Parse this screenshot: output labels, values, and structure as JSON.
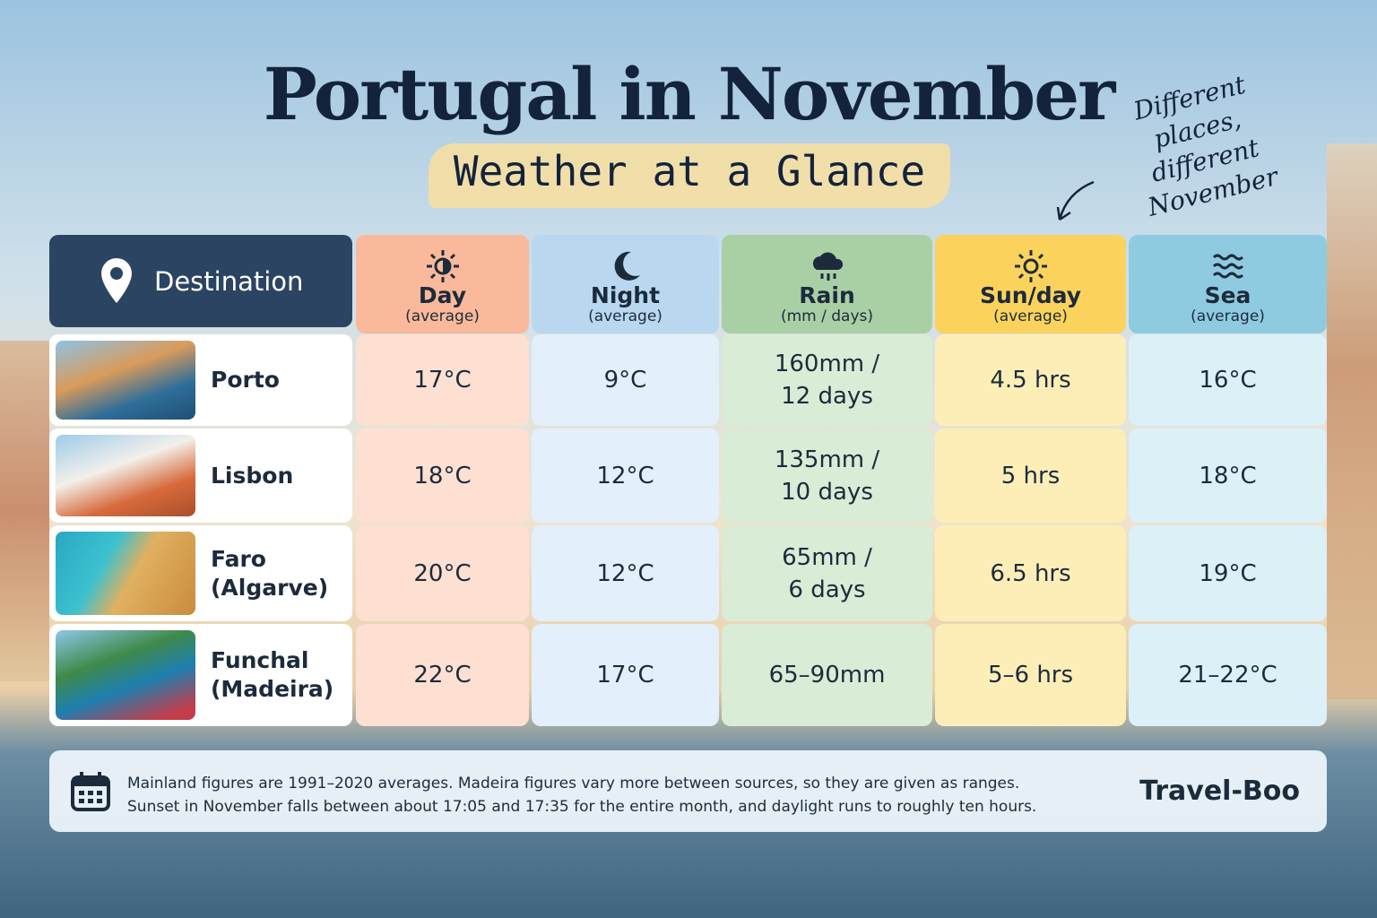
{
  "header": {
    "title": "Portugal in November",
    "subtitle": "Weather at a Glance",
    "annotation": [
      "Different",
      "places, different",
      "November"
    ]
  },
  "table": {
    "destination_header": "Destination",
    "columns": [
      {
        "title": "Day",
        "subtitle": "(average)"
      },
      {
        "title": "Night",
        "subtitle": "(average)"
      },
      {
        "title": "Rain",
        "subtitle": "(mm / days)"
      },
      {
        "title": "Sun/day",
        "subtitle": "(average)"
      },
      {
        "title": "Sea",
        "subtitle": "(average)"
      }
    ],
    "rows": [
      {
        "destination": [
          "Porto"
        ],
        "cells": [
          [
            "17°C"
          ],
          [
            "9°C"
          ],
          [
            "160mm /",
            "12 days"
          ],
          [
            "4.5 hrs"
          ],
          [
            "16°C"
          ]
        ]
      },
      {
        "destination": [
          "Lisbon"
        ],
        "cells": [
          [
            "18°C"
          ],
          [
            "12°C"
          ],
          [
            "135mm /",
            "10 days"
          ],
          [
            "5 hrs"
          ],
          [
            "18°C"
          ]
        ]
      },
      {
        "destination": [
          "Faro (Algarve)"
        ],
        "cells": [
          [
            "20°C"
          ],
          [
            "12°C"
          ],
          [
            "65mm /",
            "6 days"
          ],
          [
            "6.5 hrs"
          ],
          [
            "19°C"
          ]
        ]
      },
      {
        "destination": [
          "Funchal",
          "(Madeira)"
        ],
        "cells": [
          [
            "22°C"
          ],
          [
            "17°C"
          ],
          [
            "65–90mm"
          ],
          [
            "5–6 hrs"
          ],
          [
            "21–22°C"
          ]
        ]
      }
    ]
  },
  "footer": {
    "notes": [
      "Mainland figures are 1991–2020 averages. Madeira figures vary more between sources, so they are given as ranges.",
      "Sunset in November falls between about 17:05 and 17:35 for the entire month, and daylight runs to roughly ten hours."
    ],
    "brand": "Travel-Boo"
  }
}
